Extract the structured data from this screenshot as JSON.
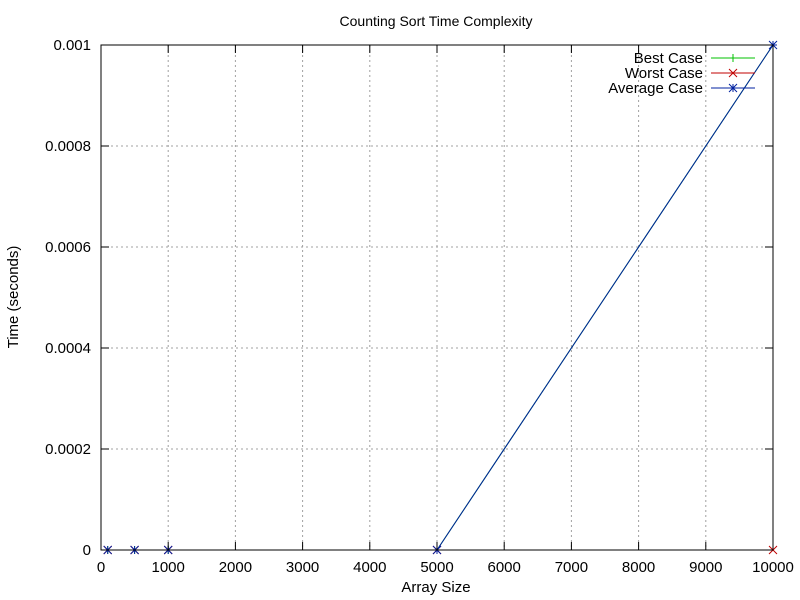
{
  "chart_data": {
    "type": "line",
    "title": "Counting Sort Time Complexity",
    "xlabel": "Array Size",
    "ylabel": "Time (seconds)",
    "xlim": [
      0,
      10000
    ],
    "ylim": [
      0,
      0.001
    ],
    "x_ticks": [
      "0",
      "1000",
      "2000",
      "3000",
      "4000",
      "5000",
      "6000",
      "7000",
      "8000",
      "9000",
      "10000"
    ],
    "y_ticks": [
      "0",
      "0.0002",
      "0.0004",
      "0.0006",
      "0.0008",
      "0.001"
    ],
    "grid": true,
    "legend_position": "top-right",
    "x": [
      100,
      500,
      1000,
      5000,
      10000
    ],
    "series": [
      {
        "name": "Best Case",
        "color": "#00c000",
        "marker": "plus",
        "values": [
          0,
          0,
          0,
          0,
          0.001
        ]
      },
      {
        "name": "Worst Case",
        "color": "#c00000",
        "marker": "cross",
        "values": [
          0,
          0,
          0,
          0,
          0
        ]
      },
      {
        "name": "Average Case",
        "color": "#0020a0",
        "marker": "star",
        "values": [
          0,
          0,
          0,
          0,
          0.001
        ]
      }
    ]
  }
}
